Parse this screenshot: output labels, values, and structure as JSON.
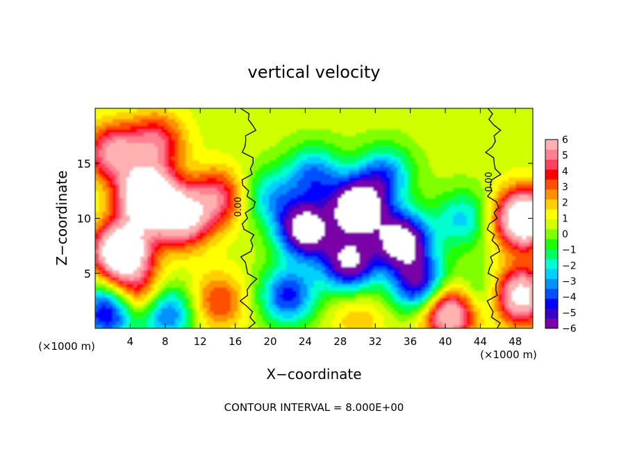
{
  "chart_data": {
    "type": "heatmap",
    "title": "vertical velocity",
    "xlabel": "X−coordinate",
    "ylabel": "Z−coordinate",
    "x_unit_label": "(×1000 m)",
    "x_ticks": [
      4,
      8,
      12,
      16,
      20,
      24,
      28,
      32,
      36,
      40,
      44,
      48
    ],
    "y_ticks": [
      5,
      10,
      15
    ],
    "xlim": [
      0,
      50
    ],
    "ylim": [
      0,
      20
    ],
    "colorbar": {
      "ticks": [
        "6",
        "5",
        "4",
        "3",
        "2",
        "1",
        "0",
        "−1",
        "−2",
        "−3",
        "−4",
        "−5",
        "−6"
      ],
      "range": [
        -6,
        6
      ],
      "colors": [
        "#7a00a8",
        "#3a00c8",
        "#0000ff",
        "#0050ff",
        "#0090ff",
        "#00d0ff",
        "#00ffd0",
        "#00ff60",
        "#20ff00",
        "#80ff00",
        "#d0ff00",
        "#ffff00",
        "#ffd000",
        "#ff9000",
        "#ff5000",
        "#ff0000",
        "#ff4060",
        "#ff8090",
        "#ffb0b0"
      ]
    },
    "zero_contour_labels": [
      "0.00",
      "0.00"
    ],
    "footer": "CONTOUR INTERVAL = 8.000E+00",
    "features": [
      {
        "x": 6,
        "z": 12,
        "w": 10
      },
      {
        "x": 3,
        "z": 7,
        "w": 9
      },
      {
        "x": 10,
        "z": 10,
        "w": 6
      },
      {
        "x": 14,
        "z": 12,
        "w": 4
      },
      {
        "x": 2,
        "z": 16,
        "w": 5
      },
      {
        "x": 7,
        "z": 17,
        "w": 4
      },
      {
        "x": 14,
        "z": 2.5,
        "w": 3
      },
      {
        "x": 5,
        "z": 3,
        "w": 4
      },
      {
        "x": 1.5,
        "z": 1.5,
        "w": -6
      },
      {
        "x": 8,
        "z": 1.5,
        "w": -5
      },
      {
        "x": 40.5,
        "z": 1.5,
        "w": 7
      },
      {
        "x": 49,
        "z": 10,
        "w": 9
      },
      {
        "x": 48.5,
        "z": 3,
        "w": 7
      },
      {
        "x": 30,
        "z": 11,
        "w": -9
      },
      {
        "x": 24,
        "z": 9,
        "w": -8
      },
      {
        "x": 35,
        "z": 8,
        "w": -8
      },
      {
        "x": 29,
        "z": 6,
        "w": -7
      },
      {
        "x": 37,
        "z": 4,
        "w": -6
      },
      {
        "x": 25,
        "z": 14,
        "w": -4
      },
      {
        "x": 33,
        "z": 14,
        "w": -4
      },
      {
        "x": 22,
        "z": 3,
        "w": -5
      },
      {
        "x": 42,
        "z": 10,
        "w": -3
      },
      {
        "x": 44,
        "z": 3,
        "w": -2.5
      },
      {
        "x": 30,
        "z": 1,
        "w": 1.5
      },
      {
        "x": 20,
        "z": 12,
        "w": -3
      }
    ]
  }
}
